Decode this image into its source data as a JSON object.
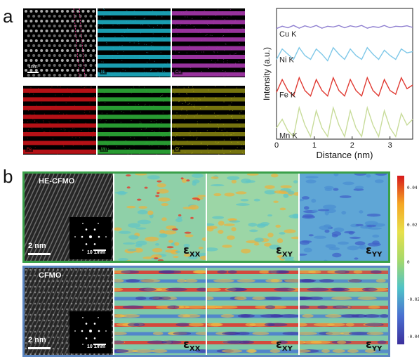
{
  "panel_a": {
    "letter": "a",
    "scale_label": "1nm",
    "maps": [
      {
        "label": "",
        "color": "#bdbdbd"
      },
      {
        "label": "Ni",
        "color": "#1fb8cf"
      },
      {
        "label": "Cu",
        "color": "#b23bb7"
      },
      {
        "label": "Fe",
        "color": "#d4141a"
      },
      {
        "label": "Mn",
        "color": "#2fb53a"
      },
      {
        "label": "O",
        "color": "#d6d21a"
      }
    ]
  },
  "chart_data": {
    "type": "line",
    "xlabel": "Distance (nm)",
    "ylabel": "Intensity (a.u.)",
    "xlim": [
      0,
      3.6
    ],
    "xticks": [
      "0",
      "1",
      "2",
      "3"
    ],
    "x": [
      0.0,
      0.15,
      0.3,
      0.45,
      0.6,
      0.75,
      0.9,
      1.05,
      1.2,
      1.35,
      1.5,
      1.65,
      1.8,
      1.95,
      2.1,
      2.25,
      2.4,
      2.55,
      2.7,
      2.85,
      3.0,
      3.15,
      3.3,
      3.45,
      3.6
    ],
    "series": [
      {
        "name": "Cu K",
        "color": "#8f7fd0",
        "offset": 0.84,
        "amp": 0.03,
        "values": [
          0.2,
          0.8,
          0.4,
          1.0,
          0.3,
          0.9,
          0.5,
          1.0,
          0.3,
          0.8,
          0.6,
          1.0,
          0.4,
          0.9,
          0.6,
          1.0,
          0.3,
          0.7,
          0.5,
          1.0,
          0.4,
          0.8,
          0.7,
          0.9,
          0.5
        ]
      },
      {
        "name": "Ni K",
        "color": "#7fc8e8",
        "offset": 0.6,
        "amp": 0.1,
        "values": [
          0.1,
          0.9,
          0.5,
          0.1,
          1.0,
          0.4,
          0.1,
          0.9,
          0.5,
          0.0,
          1.0,
          0.5,
          0.1,
          0.9,
          0.4,
          0.1,
          1.0,
          0.5,
          0.1,
          0.8,
          0.4,
          0.1,
          0.9,
          0.6,
          0.7
        ]
      },
      {
        "name": "Fe K",
        "color": "#e03a32",
        "offset": 0.33,
        "amp": 0.14,
        "values": [
          0.2,
          0.9,
          0.3,
          0.0,
          1.0,
          0.3,
          0.0,
          0.9,
          0.3,
          0.0,
          1.0,
          0.3,
          0.0,
          0.9,
          0.3,
          0.0,
          1.0,
          0.3,
          0.0,
          0.9,
          0.3,
          0.1,
          1.0,
          0.4,
          0.6
        ]
      },
      {
        "name": "Mn K",
        "color": "#c8dc9a",
        "offset": 0.02,
        "amp": 0.22,
        "values": [
          0.3,
          0.6,
          0.2,
          0.0,
          1.0,
          0.4,
          0.0,
          0.9,
          0.3,
          0.0,
          1.0,
          0.4,
          0.0,
          0.9,
          0.3,
          0.0,
          1.0,
          0.4,
          0.0,
          0.9,
          0.3,
          0.0,
          0.8,
          0.4,
          0.6
        ]
      }
    ],
    "grid": false
  },
  "panel_b": {
    "letter": "b",
    "rows": [
      {
        "sample": "HE-CFMO",
        "frame_color": "#3aa04a",
        "scale": "2 nm",
        "fft_scale": "10 1/nm",
        "maps": [
          {
            "symbol": "ε",
            "sub": "XX"
          },
          {
            "symbol": "ε",
            "sub": "XY"
          },
          {
            "symbol": "ε",
            "sub": "YY"
          }
        ]
      },
      {
        "sample": "CFMO",
        "frame_color": "#5b86c2",
        "scale": "2 nm",
        "fft_scale": "10 1/nm",
        "maps": [
          {
            "symbol": "ε",
            "sub": "XX"
          },
          {
            "symbol": "ε",
            "sub": "XY"
          },
          {
            "symbol": "ε",
            "sub": "YY"
          }
        ]
      }
    ],
    "colorbar": {
      "ticks": [
        "0.04",
        "0.02",
        "0",
        "-0.02",
        "-0.04"
      ],
      "colors": [
        "#d7191c",
        "#f5a623",
        "#e8e04a",
        "#a6d96a",
        "#4fc3c8",
        "#4a6fd1",
        "#3b2f9c"
      ]
    }
  }
}
